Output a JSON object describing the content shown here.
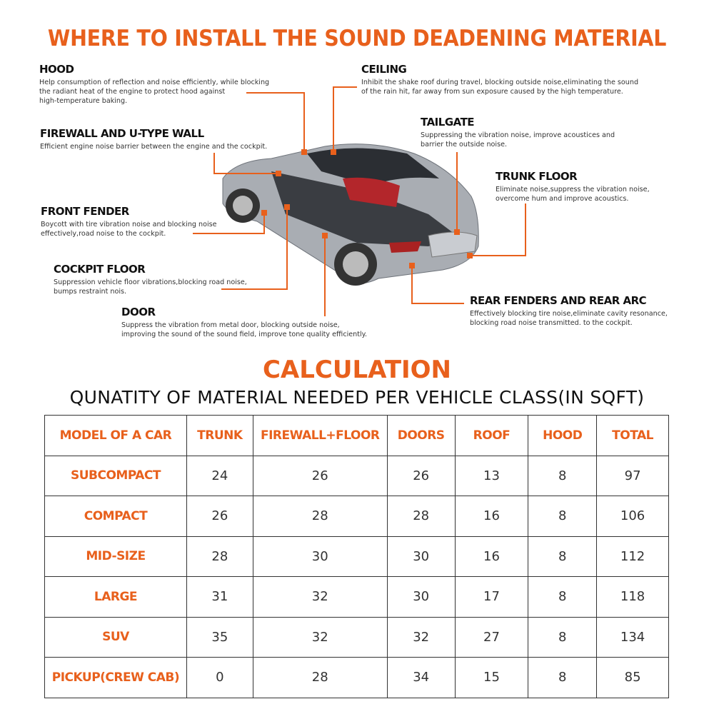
{
  "title": "WHERE TO INSTALL THE SOUND DEADENING MATERIAL",
  "accent_color": "#e8601c",
  "parts": [
    {
      "name": "HOOD",
      "desc": "Help consumption of reflection and noise efficiently, while blocking\nthe radiant heat of the engine to protect hood against\nhigh-temperature baking."
    },
    {
      "name": "CEILING",
      "desc": "Inhibit the shake roof during travel, blocking outside noise,eliminating the sound\nof the rain hit, far away from sun exposure caused by the high temperature."
    },
    {
      "name": "FIREWALL AND U-TYPE WALL",
      "desc": "Efficient engine noise barrier between the engine and the cockpit."
    },
    {
      "name": "TAILGATE",
      "desc": "Suppressing the vibration noise, improve acoustices and\nbarrier the outside noise."
    },
    {
      "name": "TRUNK FLOOR",
      "desc": "Eliminate noise,suppress the vibration noise,\novercome hum and improve acoustics."
    },
    {
      "name": "FRONT FENDER",
      "desc": "Boycott with tire vibration noise and blocking noise\neffectively,road noise to the cockpit."
    },
    {
      "name": "COCKPIT FLOOR",
      "desc": "Suppression vehicle floor vibrations,blocking road noise,\nbumps restraint nois."
    },
    {
      "name": "DOOR",
      "desc": "Suppress the vibration from metal door, blocking outside noise,\nimproving the sound of the sound field, improve tone quality efficiently."
    },
    {
      "name": "REAR FENDERS AND REAR ARC",
      "desc": "Effectively blocking tire noise,eliminate cavity resonance,\nblocking road noise transmitted. to the cockpit."
    }
  ],
  "calculation": {
    "title": "CALCULATION",
    "subtitle": "QUNATITY OF MATERIAL NEEDED PER VEHICLE CLASS(IN SQFT)",
    "headers": [
      "MODEL OF A CAR",
      "TRUNK",
      "FIREWALL+FLOOR",
      "DOORS",
      "ROOF",
      "HOOD",
      "TOTAL"
    ],
    "rows": [
      [
        "SUBCOMPACT",
        "24",
        "26",
        "26",
        "13",
        "8",
        "97"
      ],
      [
        "COMPACT",
        "26",
        "28",
        "28",
        "16",
        "8",
        "106"
      ],
      [
        "MID-SIZE",
        "28",
        "30",
        "30",
        "16",
        "8",
        "112"
      ],
      [
        "LARGE",
        "31",
        "32",
        "30",
        "17",
        "8",
        "118"
      ],
      [
        "SUV",
        "35",
        "32",
        "32",
        "27",
        "8",
        "134"
      ],
      [
        "PICKUP(CREW CAB)",
        "0",
        "28",
        "34",
        "15",
        "8",
        "85"
      ]
    ]
  }
}
